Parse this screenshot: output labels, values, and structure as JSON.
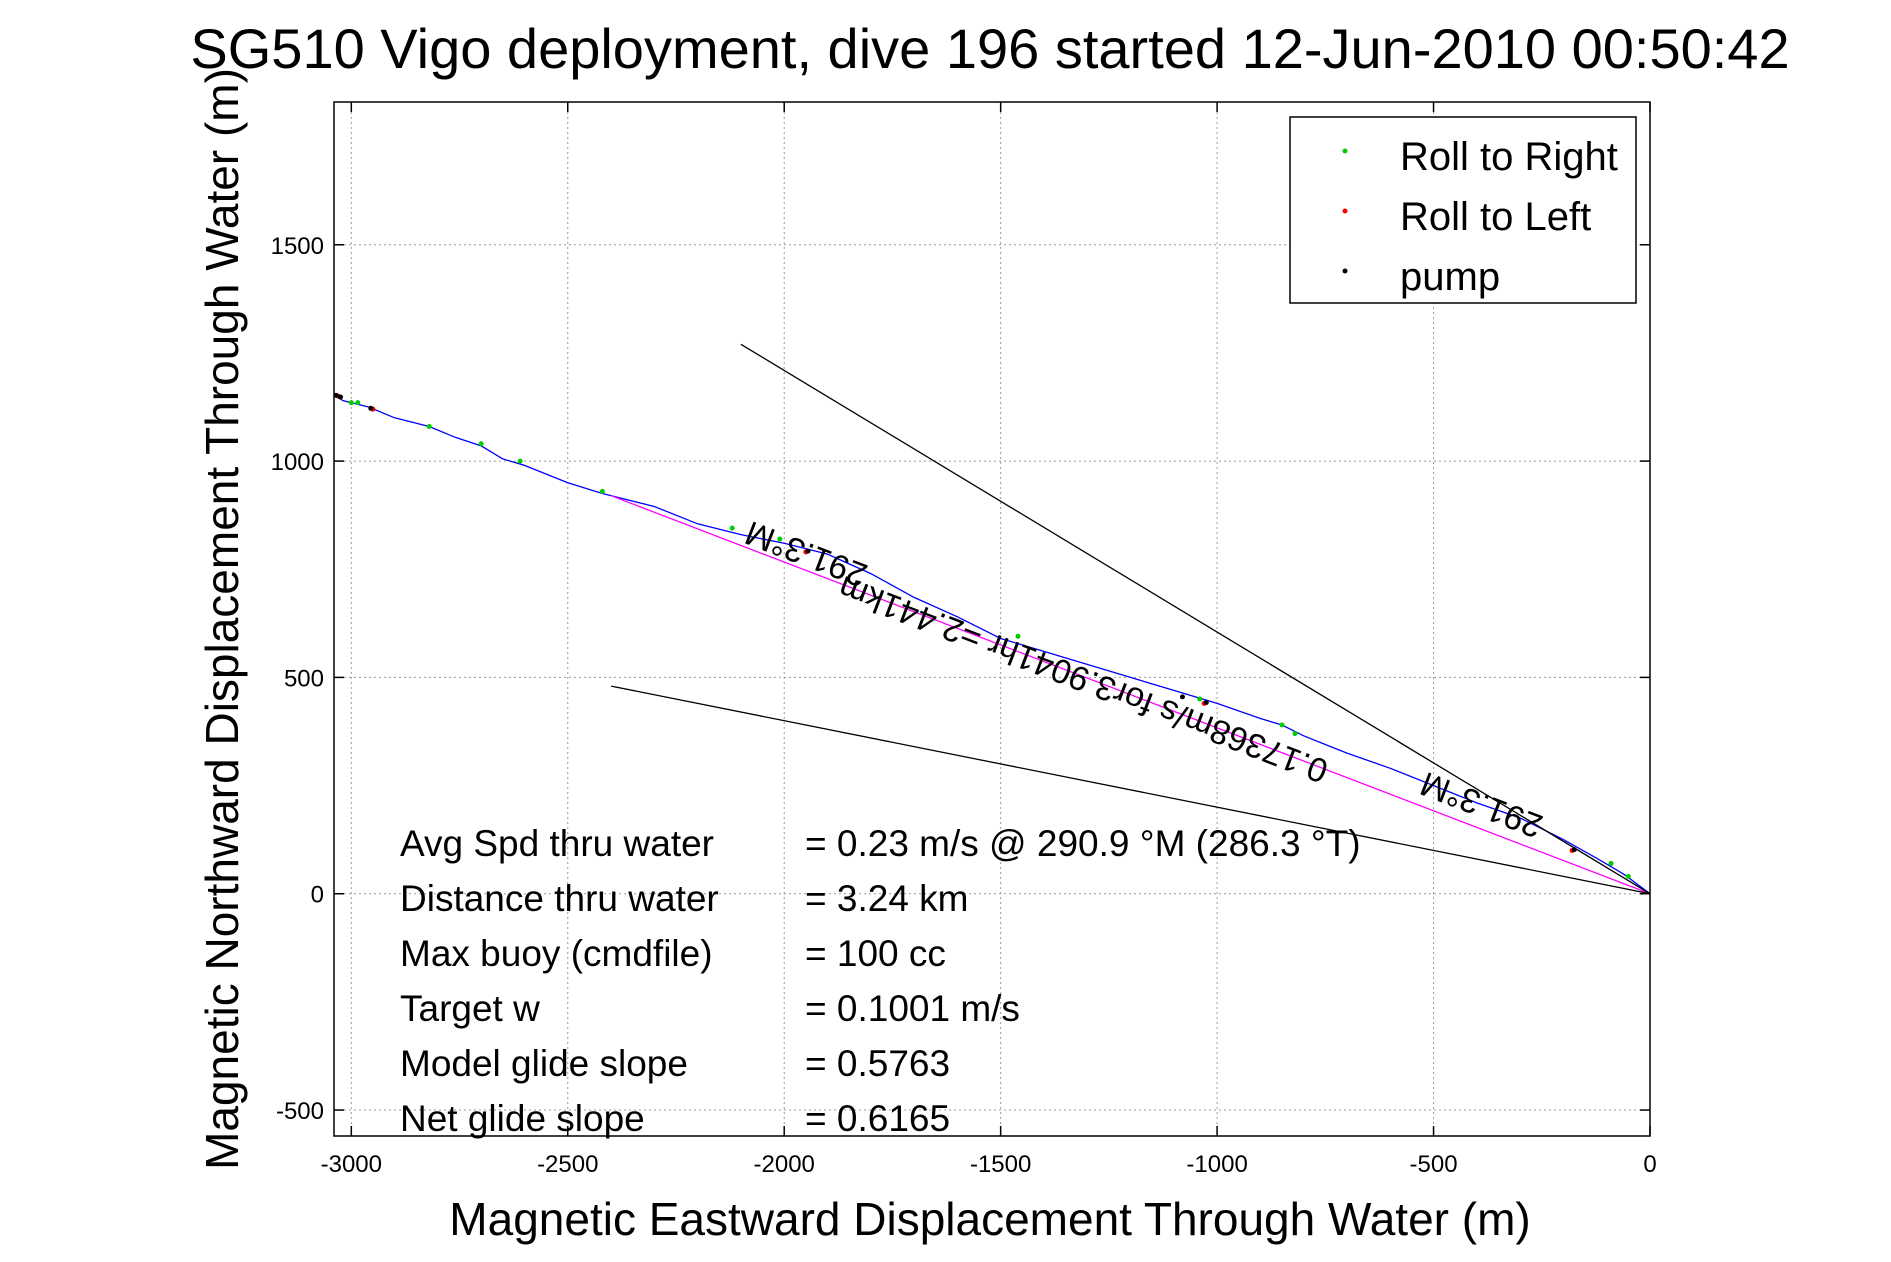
{
  "chart_data": {
    "type": "line",
    "title": "SG510 Vigo deployment, dive 196 started 12-Jun-2010 00:50:42",
    "xlabel": "Magnetic Eastward Displacement Through Water (m)",
    "ylabel": "Magnetic Northward Displacement Through Water (m)",
    "xlim": [
      -3040,
      0
    ],
    "ylim": [
      -560,
      1830
    ],
    "x_ticks": [
      -3000,
      -2500,
      -2000,
      -1500,
      -1000,
      -500,
      0
    ],
    "y_ticks": [
      -500,
      0,
      500,
      1000,
      1500
    ],
    "grid": true,
    "legend": {
      "position": "top-right",
      "entries": [
        {
          "label": "Roll to Right",
          "color": "#00cc00"
        },
        {
          "label": "Roll to Left",
          "color": "#ff0000"
        },
        {
          "label": "pump",
          "color": "#000000"
        }
      ]
    },
    "series": [
      {
        "color": "#0000ff",
        "x": [
          -3040,
          -3020,
          -3000,
          -2960,
          -2900,
          -2820,
          -2760,
          -2700,
          -2650,
          -2600,
          -2500,
          -2420,
          -2300,
          -2200,
          -2100,
          -2000,
          -1900,
          -1800,
          -1700,
          -1600,
          -1500,
          -1400,
          -1300,
          -1200,
          -1100,
          -1000,
          -900,
          -850,
          -800,
          -750,
          -700,
          -600,
          -500,
          -400,
          -300,
          -200,
          -120,
          -60,
          0
        ],
        "y": [
          1155,
          1140,
          1135,
          1125,
          1100,
          1080,
          1055,
          1035,
          1005,
          990,
          950,
          925,
          895,
          855,
          830,
          810,
          785,
          740,
          685,
          640,
          590,
          560,
          530,
          500,
          470,
          440,
          405,
          390,
          365,
          345,
          325,
          290,
          250,
          210,
          175,
          125,
          80,
          45,
          0
        ]
      },
      {
        "color": "#ff00ff",
        "x": [
          -2400,
          0
        ],
        "y": [
          920,
          0
        ]
      },
      {
        "color": "#000000",
        "x": [
          -2100,
          0
        ],
        "y": [
          1270,
          0
        ]
      },
      {
        "color": "#000000",
        "x": [
          -2400,
          0
        ],
        "y": [
          480,
          0
        ]
      }
    ],
    "roll_right_points": {
      "x": [
        -3000,
        -2985,
        -2820,
        -2700,
        -2610,
        -2420,
        -2120,
        -2010,
        -1460,
        -1040,
        -850,
        -820,
        -90,
        -50
      ],
      "y": [
        1135,
        1135,
        1080,
        1040,
        1000,
        930,
        845,
        820,
        595,
        450,
        390,
        370,
        70,
        40
      ]
    },
    "roll_left_points": {
      "x": [
        -3030,
        -2950,
        -1950,
        -1030,
        -180
      ],
      "y": [
        1150,
        1120,
        790,
        440,
        100
      ]
    },
    "pump_points": {
      "x": [
        -3035,
        -3025,
        -2955,
        -1945,
        -1080,
        -1025,
        -175
      ],
      "y": [
        1152,
        1148,
        1122,
        792,
        455,
        442,
        102
      ]
    },
    "annotations": [
      {
        "text": "291.3°M",
        "x": -1940,
        "y": 810,
        "rotate": 201
      },
      {
        "text": "0.17368m/s for3.9041hr =2.441km",
        "x": -1300,
        "y": 520,
        "rotate": 201
      },
      {
        "text": "291.3°M",
        "x": -380,
        "y": 230,
        "rotate": 201
      }
    ],
    "stats": [
      {
        "label": "Avg Spd thru water",
        "value": "=  0.23 m/s @ 290.9 °M (286.3 °T)"
      },
      {
        "label": "Distance thru water",
        "value": "=  3.24 km"
      },
      {
        "label": "Max buoy (cmdfile)",
        "value": "= 100 cc"
      },
      {
        "label": "Target w",
        "value": "= 0.1001 m/s"
      },
      {
        "label": "Model glide slope",
        "value": "= 0.5763"
      },
      {
        "label": "Net glide slope",
        "value": "= 0.6165"
      }
    ]
  }
}
